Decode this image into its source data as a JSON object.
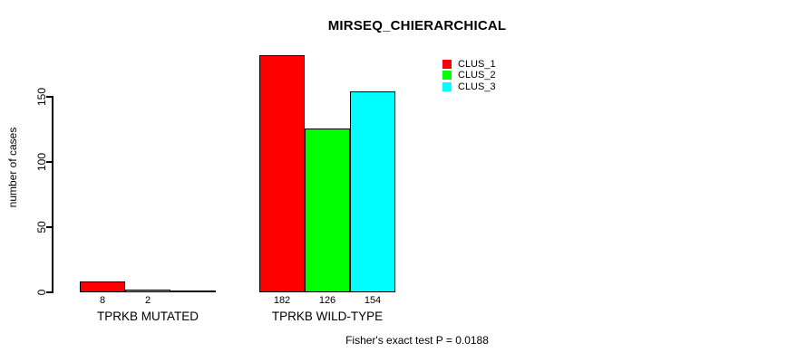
{
  "title": "MIRSEQ_CHIERARCHICAL",
  "footer": "Fisher's exact test P = 0.0188",
  "colors": {
    "background": "#FFFFFF",
    "text": "#000000",
    "bar_border": "#000000",
    "clus_1": "#FF0000",
    "clus_2": "#00FF00",
    "clus_3": "#00FFFF"
  },
  "chart_data": {
    "type": "bar",
    "title": "MIRSEQ_CHIERARCHICAL",
    "xlabel": "",
    "ylabel": "number of cases",
    "categories": [
      "TPRKB MUTATED",
      "TPRKB WILD-TYPE"
    ],
    "series": [
      {
        "name": "CLUS_1",
        "color": "#FF0000",
        "values": [
          8,
          182
        ]
      },
      {
        "name": "CLUS_2",
        "color": "#00FF00",
        "values": [
          2,
          126
        ]
      },
      {
        "name": "CLUS_3",
        "color": "#00FFFF",
        "values": [
          0,
          154
        ]
      }
    ],
    "bar_value_labels": [
      [
        "8",
        "2",
        ""
      ],
      [
        "182",
        "126",
        "154"
      ]
    ],
    "yticks": [
      0,
      50,
      100,
      150
    ],
    "ylim": [
      0,
      183
    ],
    "grid": false,
    "legend_position": "top-right",
    "legend_border": false,
    "annotation": "Fisher's exact test P = 0.0188"
  }
}
